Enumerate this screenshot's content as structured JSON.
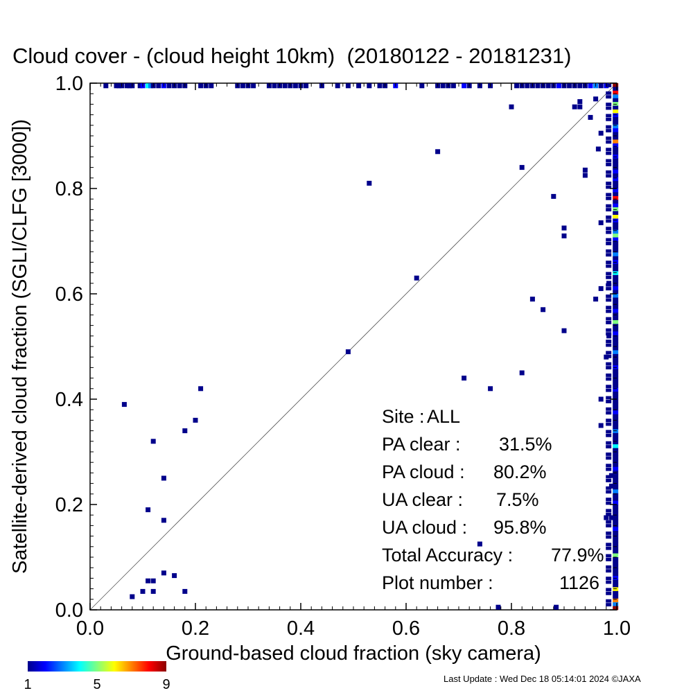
{
  "colors": {
    "background": "#ffffff",
    "axis": "#000000",
    "point_default": "#00008b",
    "colorbar_stops": [
      "#00008b",
      "#0000ff",
      "#0080ff",
      "#00ffff",
      "#80ff80",
      "#ffff00",
      "#ff8000",
      "#ff0000",
      "#8b0000"
    ]
  },
  "chart_data": {
    "type": "scatter",
    "title": "Cloud cover - (cloud height 10km)  (20180122 - 20181231)",
    "xlabel": "Ground-based cloud fraction (sky camera)",
    "ylabel": "Satellite-derived cloud fraction (SGLI/CLFG [3000])",
    "xlim": [
      0.0,
      1.0
    ],
    "ylim": [
      0.0,
      1.0
    ],
    "x_ticks": [
      "0.0",
      "0.2",
      "0.4",
      "0.6",
      "0.8",
      "1.0"
    ],
    "y_ticks": [
      "0.0",
      "0.2",
      "0.4",
      "0.6",
      "0.8",
      "1.0"
    ],
    "reference_line": "1:1 diagonal",
    "colorbar": {
      "min": 1,
      "max": 9,
      "tick_labels": [
        "1",
        "5",
        "9"
      ]
    },
    "points": [
      [
        0.065,
        0.39,
        1
      ],
      [
        0.12,
        0.32,
        1
      ],
      [
        0.14,
        0.25,
        1
      ],
      [
        0.11,
        0.19,
        1
      ],
      [
        0.14,
        0.17,
        1
      ],
      [
        0.18,
        0.34,
        1
      ],
      [
        0.2,
        0.36,
        1
      ],
      [
        0.21,
        0.42,
        1
      ],
      [
        0.14,
        0.07,
        1
      ],
      [
        0.16,
        0.065,
        1
      ],
      [
        0.11,
        0.055,
        1
      ],
      [
        0.12,
        0.055,
        1
      ],
      [
        0.1,
        0.035,
        1
      ],
      [
        0.12,
        0.035,
        1
      ],
      [
        0.18,
        0.035,
        1
      ],
      [
        0.08,
        0.025,
        1
      ],
      [
        0.49,
        0.49,
        1
      ],
      [
        0.53,
        0.81,
        1
      ],
      [
        0.62,
        0.63,
        1
      ],
      [
        0.66,
        0.87,
        1
      ],
      [
        0.71,
        0.44,
        1
      ],
      [
        0.76,
        0.42,
        1
      ],
      [
        0.82,
        0.45,
        1
      ],
      [
        0.8,
        0.955,
        1
      ],
      [
        0.82,
        0.84,
        1
      ],
      [
        0.84,
        0.59,
        1
      ],
      [
        0.86,
        0.57,
        1
      ],
      [
        0.88,
        0.785,
        1
      ],
      [
        0.9,
        0.53,
        1
      ],
      [
        0.9,
        0.725,
        1
      ],
      [
        0.9,
        0.71,
        1
      ],
      [
        0.92,
        0.955,
        1
      ],
      [
        0.93,
        0.965,
        1
      ],
      [
        0.93,
        0.955,
        1
      ],
      [
        0.94,
        0.835,
        1
      ],
      [
        0.94,
        0.825,
        1
      ],
      [
        0.95,
        0.935,
        1
      ],
      [
        0.96,
        0.59,
        1
      ],
      [
        0.97,
        0.61,
        1
      ],
      [
        0.97,
        0.735,
        1
      ],
      [
        0.97,
        0.4,
        1
      ],
      [
        0.97,
        0.35,
        1
      ],
      [
        0.98,
        0.48,
        1
      ],
      [
        0.74,
        0.125,
        1
      ],
      [
        0.775,
        0.005,
        1
      ],
      [
        0.885,
        0.005,
        1
      ],
      [
        0.97,
        0.905,
        1
      ],
      [
        0.96,
        0.97,
        1
      ],
      [
        0.965,
        0.875,
        1
      ],
      [
        0.99,
        0.255,
        1
      ],
      [
        0.99,
        0.175,
        1
      ],
      [
        0.99,
        0.235,
        1
      ],
      [
        0.98,
        0.175,
        1
      ],
      [
        0.985,
        0.62,
        1
      ],
      [
        0.985,
        0.52,
        1
      ],
      [
        0.03,
        0.995,
        1
      ],
      [
        0.05,
        0.995,
        1
      ],
      [
        0.055,
        0.995,
        1
      ],
      [
        0.06,
        0.995,
        1
      ],
      [
        0.07,
        0.995,
        1
      ],
      [
        0.075,
        0.995,
        1
      ],
      [
        0.08,
        0.995,
        1
      ],
      [
        0.095,
        0.995,
        1
      ],
      [
        0.1,
        0.995,
        2
      ],
      [
        0.11,
        0.995,
        4
      ],
      [
        0.115,
        0.995,
        3
      ],
      [
        0.12,
        0.995,
        1
      ],
      [
        0.13,
        0.995,
        1
      ],
      [
        0.14,
        0.995,
        2
      ],
      [
        0.15,
        0.995,
        1
      ],
      [
        0.16,
        0.995,
        1
      ],
      [
        0.17,
        0.995,
        1
      ],
      [
        0.18,
        0.995,
        1
      ],
      [
        0.21,
        0.995,
        1
      ],
      [
        0.22,
        0.995,
        1
      ],
      [
        0.23,
        0.995,
        1
      ],
      [
        0.28,
        0.995,
        1
      ],
      [
        0.29,
        0.995,
        1
      ],
      [
        0.3,
        0.995,
        1
      ],
      [
        0.31,
        0.995,
        1
      ],
      [
        0.34,
        0.995,
        1
      ],
      [
        0.35,
        0.995,
        1
      ],
      [
        0.36,
        0.995,
        1
      ],
      [
        0.37,
        0.995,
        1
      ],
      [
        0.38,
        0.995,
        1
      ],
      [
        0.39,
        0.995,
        1
      ],
      [
        0.4,
        0.995,
        1
      ],
      [
        0.41,
        0.995,
        1
      ],
      [
        0.44,
        0.995,
        1
      ],
      [
        0.47,
        0.995,
        1
      ],
      [
        0.49,
        0.995,
        1
      ],
      [
        0.51,
        0.995,
        1
      ],
      [
        0.53,
        0.995,
        1
      ],
      [
        0.55,
        0.995,
        1
      ],
      [
        0.56,
        0.995,
        1
      ],
      [
        0.58,
        0.995,
        2
      ],
      [
        0.63,
        0.995,
        1
      ],
      [
        0.66,
        0.995,
        1
      ],
      [
        0.67,
        0.995,
        1
      ],
      [
        0.68,
        0.995,
        1
      ],
      [
        0.69,
        0.995,
        1
      ],
      [
        0.71,
        0.995,
        2
      ],
      [
        0.72,
        0.995,
        1
      ],
      [
        0.74,
        0.995,
        1
      ],
      [
        0.76,
        0.995,
        1
      ],
      [
        0.81,
        0.995,
        1
      ],
      [
        0.82,
        0.995,
        1
      ],
      [
        0.83,
        0.995,
        1
      ],
      [
        0.84,
        0.995,
        1
      ],
      [
        0.85,
        0.995,
        1
      ],
      [
        0.86,
        0.995,
        1
      ],
      [
        0.87,
        0.995,
        1
      ],
      [
        0.88,
        0.995,
        1
      ],
      [
        0.89,
        0.995,
        2
      ],
      [
        0.9,
        0.995,
        1
      ],
      [
        0.91,
        0.995,
        1
      ],
      [
        0.92,
        0.995,
        1
      ],
      [
        0.93,
        0.995,
        1
      ],
      [
        0.94,
        0.995,
        1
      ],
      [
        0.95,
        0.995,
        2
      ],
      [
        0.96,
        0.995,
        3
      ],
      [
        0.97,
        0.995,
        1
      ],
      [
        0.98,
        0.995,
        2
      ]
    ],
    "right_edge_column": {
      "x": 0.995,
      "counts_by_y_bin": [
        9,
        1,
        8,
        3,
        1,
        5,
        1,
        6,
        2,
        1,
        1,
        3,
        2,
        1,
        1,
        7,
        2,
        1,
        1,
        2,
        1,
        1,
        1,
        2,
        1,
        2,
        1,
        1,
        2,
        1,
        8,
        1,
        2,
        5,
        1,
        6,
        2,
        1,
        1,
        3,
        5,
        2,
        1,
        1,
        1,
        3,
        1,
        2,
        1,
        1,
        4,
        1,
        1,
        1,
        2,
        1,
        3,
        1,
        1,
        1,
        2,
        1,
        1,
        5,
        1,
        1,
        2,
        1,
        1,
        1,
        1,
        3,
        1,
        1,
        1,
        2,
        1,
        1,
        1,
        1,
        1,
        2,
        1,
        1,
        1,
        1,
        1,
        2,
        1,
        1,
        1,
        1,
        3,
        1,
        1,
        1,
        4,
        1,
        1,
        1,
        1,
        1,
        2,
        1,
        1,
        1,
        1,
        1,
        3,
        1,
        1,
        2,
        1,
        1,
        1,
        1,
        1,
        1,
        2,
        1,
        1,
        1,
        1,
        1,
        1,
        5,
        1,
        1,
        1,
        1,
        1,
        2,
        1,
        1,
        6,
        1,
        1,
        7,
        3,
        9
      ]
    },
    "annotations": [
      {
        "label": "Site :",
        "value": "ALL"
      },
      {
        "label": "PA clear :",
        "value": "31.5%"
      },
      {
        "label": "PA cloud :",
        "value": "80.2%"
      },
      {
        "label": "UA clear :",
        "value": "7.5%"
      },
      {
        "label": "UA cloud :",
        "value": "95.8%"
      },
      {
        "label": "Total Accuracy :",
        "value": "77.9%"
      },
      {
        "label": "Plot number :",
        "value": "1126"
      }
    ]
  },
  "footer": "Last Update : Wed Dec 18 05:14:01 2024  ©JAXA"
}
